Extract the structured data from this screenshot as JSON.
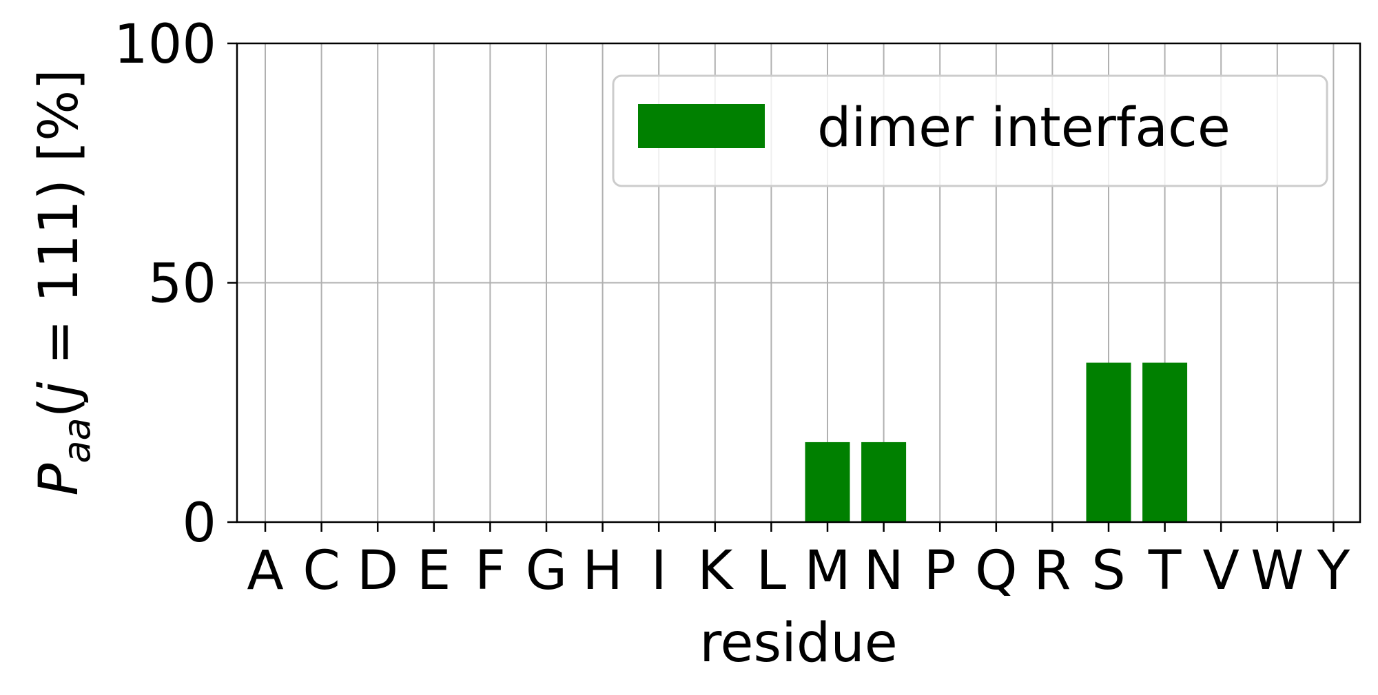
{
  "chart_data": {
    "type": "bar",
    "title": "",
    "xlabel": "residue",
    "ylabel": {
      "main": "P",
      "sub": "aa",
      "rest_open": "(",
      "var": "j",
      "rest_close": " = 111) [%]"
    },
    "categories": [
      "A",
      "C",
      "D",
      "E",
      "F",
      "G",
      "H",
      "I",
      "K",
      "L",
      "M",
      "N",
      "P",
      "Q",
      "R",
      "S",
      "T",
      "V",
      "W",
      "Y"
    ],
    "series": [
      {
        "name": "dimer interface",
        "color": "#008000",
        "values": [
          0,
          0,
          0,
          0,
          0,
          0,
          0,
          0,
          0,
          0,
          16.7,
          16.7,
          0,
          0,
          0,
          33.3,
          33.3,
          0,
          0,
          0
        ]
      }
    ],
    "ylim": [
      0,
      100
    ],
    "yticks": [
      "0",
      "50",
      "100"
    ],
    "grid": true,
    "legend_position": "top-right"
  }
}
